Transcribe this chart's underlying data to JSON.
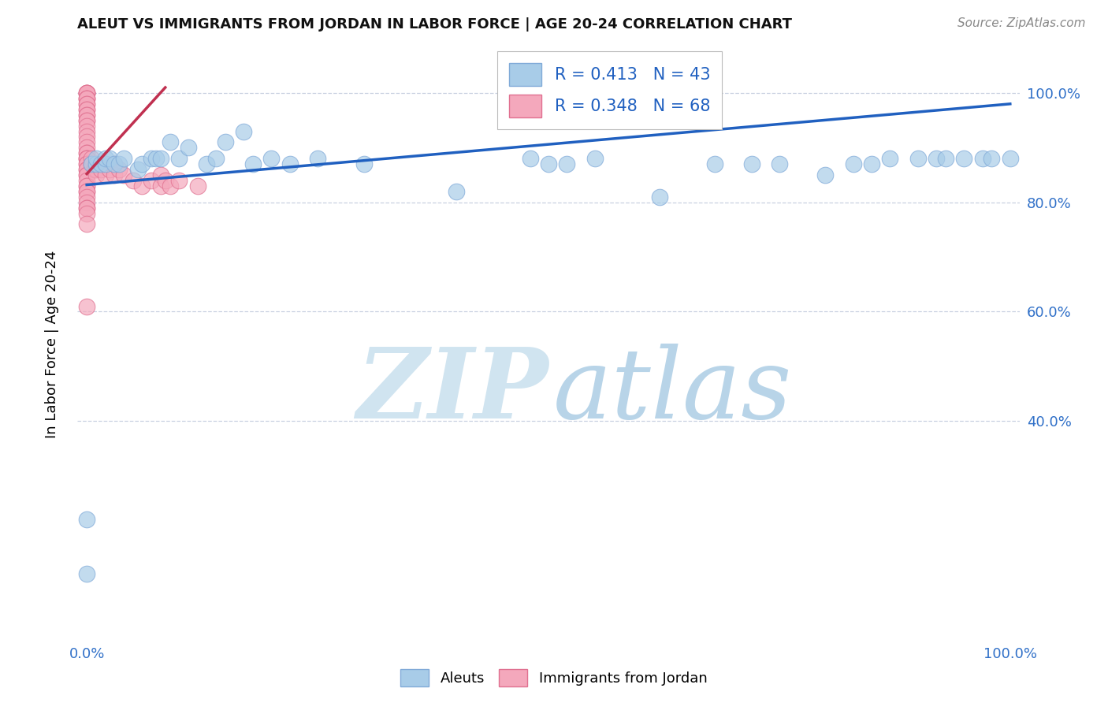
{
  "title": "ALEUT VS IMMIGRANTS FROM JORDAN IN LABOR FORCE | AGE 20-24 CORRELATION CHART",
  "source": "Source: ZipAtlas.com",
  "ylabel_label": "In Labor Force | Age 20-24",
  "blue_R": 0.413,
  "blue_N": 43,
  "pink_R": 0.348,
  "pink_N": 68,
  "blue_color": "#a8cce8",
  "pink_color": "#f4a8bc",
  "blue_edge_color": "#80aad8",
  "pink_edge_color": "#e07090",
  "blue_line_color": "#2060c0",
  "pink_line_color": "#c03050",
  "watermark_zip_color": "#d0e4f0",
  "watermark_atlas_color": "#b8d4e8",
  "bg_color": "#ffffff",
  "grid_color": "#c8d0e0",
  "tick_color": "#3070c8",
  "title_color": "#111111",
  "source_color": "#888888",
  "legend_label_color": "#2060c0",
  "ylim_min": 0.0,
  "ylim_max": 1.08,
  "xlim_min": -0.01,
  "xlim_max": 1.01,
  "blue_line_x": [
    0.0,
    1.0
  ],
  "blue_line_y": [
    0.832,
    0.98
  ],
  "pink_line_x": [
    0.0,
    0.085
  ],
  "pink_line_y": [
    0.852,
    1.01
  ],
  "blue_points_x": [
    0.0,
    0.0,
    0.005,
    0.01,
    0.01,
    0.015,
    0.02,
    0.02,
    0.025,
    0.03,
    0.035,
    0.04,
    0.055,
    0.06,
    0.07,
    0.075,
    0.08,
    0.09,
    0.1,
    0.11,
    0.13,
    0.14,
    0.15,
    0.17,
    0.18,
    0.2,
    0.22,
    0.25,
    0.3,
    0.4,
    0.48,
    0.5,
    0.52,
    0.55,
    0.62,
    0.68,
    0.72,
    0.75,
    0.8,
    0.83,
    0.85,
    0.87,
    0.9,
    0.92,
    0.93,
    0.95,
    0.97,
    0.98,
    1.0
  ],
  "blue_points_y": [
    0.22,
    0.12,
    0.87,
    0.87,
    0.88,
    0.87,
    0.87,
    0.88,
    0.88,
    0.87,
    0.87,
    0.88,
    0.86,
    0.87,
    0.88,
    0.88,
    0.88,
    0.91,
    0.88,
    0.9,
    0.87,
    0.88,
    0.91,
    0.93,
    0.87,
    0.88,
    0.87,
    0.88,
    0.87,
    0.82,
    0.88,
    0.87,
    0.87,
    0.88,
    0.81,
    0.87,
    0.87,
    0.87,
    0.85,
    0.87,
    0.87,
    0.88,
    0.88,
    0.88,
    0.88,
    0.88,
    0.88,
    0.88,
    0.88
  ],
  "pink_points_x": [
    0.0,
    0.0,
    0.0,
    0.0,
    0.0,
    0.0,
    0.0,
    0.0,
    0.0,
    0.0,
    0.0,
    0.0,
    0.0,
    0.0,
    0.0,
    0.0,
    0.0,
    0.0,
    0.0,
    0.0,
    0.0,
    0.0,
    0.0,
    0.0,
    0.0,
    0.0,
    0.0,
    0.0,
    0.0,
    0.0,
    0.0,
    0.0,
    0.0,
    0.0,
    0.0,
    0.0,
    0.0,
    0.0,
    0.0,
    0.0,
    0.0,
    0.0,
    0.0,
    0.0,
    0.005,
    0.005,
    0.008,
    0.01,
    0.01,
    0.01,
    0.015,
    0.015,
    0.02,
    0.02,
    0.025,
    0.03,
    0.03,
    0.035,
    0.04,
    0.05,
    0.06,
    0.07,
    0.08,
    0.08,
    0.085,
    0.09,
    0.1,
    0.12
  ],
  "pink_points_y": [
    1.0,
    1.0,
    1.0,
    1.0,
    1.0,
    0.99,
    0.99,
    0.99,
    0.98,
    0.98,
    0.97,
    0.97,
    0.96,
    0.96,
    0.95,
    0.95,
    0.94,
    0.93,
    0.92,
    0.91,
    0.9,
    0.89,
    0.89,
    0.88,
    0.88,
    0.88,
    0.87,
    0.87,
    0.86,
    0.86,
    0.85,
    0.85,
    0.84,
    0.83,
    0.83,
    0.82,
    0.82,
    0.81,
    0.8,
    0.79,
    0.79,
    0.78,
    0.76,
    0.61,
    0.88,
    0.87,
    0.86,
    0.87,
    0.86,
    0.85,
    0.87,
    0.86,
    0.87,
    0.85,
    0.86,
    0.87,
    0.85,
    0.86,
    0.85,
    0.84,
    0.83,
    0.84,
    0.85,
    0.83,
    0.84,
    0.83,
    0.84,
    0.83
  ]
}
